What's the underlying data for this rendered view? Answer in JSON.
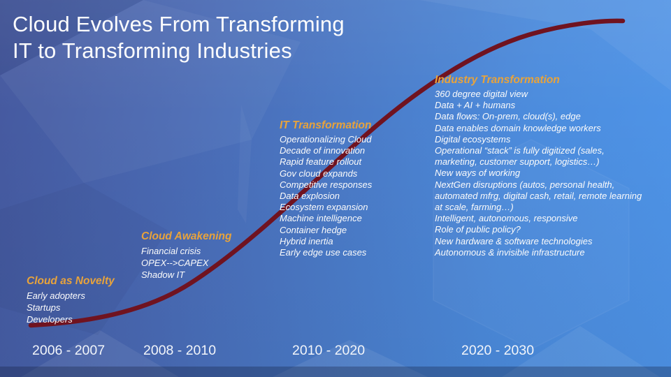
{
  "title": {
    "line1": "Cloud Evolves From Transforming",
    "line2": "IT to Transforming Industries"
  },
  "phases": [
    {
      "title": "Cloud as Novelty",
      "items": [
        "Early adopters",
        "Startups",
        "Developers"
      ],
      "period": "2006 - 2007"
    },
    {
      "title": "Cloud Awakening",
      "items": [
        "Financial crisis",
        "OPEX-->CAPEX",
        "Shadow IT"
      ],
      "period": "2008 - 2010"
    },
    {
      "title": "IT Transformation",
      "items": [
        "Operationalizing Cloud",
        "Decade of innovation",
        "Rapid feature rollout",
        "Gov cloud expands",
        "Competitive responses",
        "Data explosion",
        "Ecosystem expansion",
        "Machine intelligence",
        "Container hedge",
        "Hybrid inertia",
        "Early edge use cases"
      ],
      "period": "2010 - 2020"
    },
    {
      "title": "Industry Transformation",
      "items": [
        "360 degree digital view",
        "Data + AI + humans",
        "Data flows: On-prem, cloud(s), edge",
        "Data enables domain knowledge workers",
        "Digital ecosystems",
        "Operational “stack” is fully digitized (sales, marketing, customer support, logistics…)",
        "New ways of working",
        "NextGen disruptions (autos, personal health, automated mfrg, digital cash, retail, remote learning at scale, farming…)",
        "Intelligent, autonomous, responsive",
        "Role of public policy?",
        "New hardware & software technologies",
        "Autonomous & invisible infrastructure"
      ],
      "period": "2020 - 2030"
    }
  ],
  "colors": {
    "phase_title": "#E8A33B",
    "curve": "#701320",
    "background_left": "#45589E",
    "background_right": "#4F96EA",
    "text": "#FFFFFF"
  }
}
